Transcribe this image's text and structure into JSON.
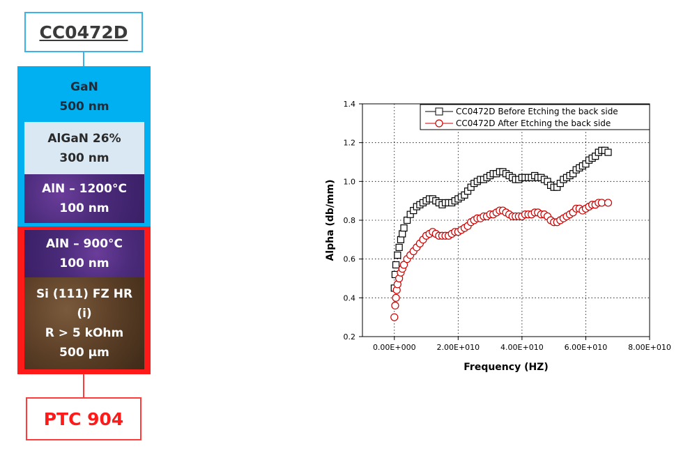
{
  "diagram": {
    "top_label": "CC0472D",
    "layers": [
      {
        "lines": [
          "GaN",
          "500 nm"
        ]
      },
      {
        "lines": [
          "AlGaN 26%",
          "300 nm"
        ]
      },
      {
        "lines": [
          "AlN – 1200°C",
          "100 nm"
        ]
      },
      {
        "lines": [
          "AlN – 900°C",
          "100 nm"
        ]
      },
      {
        "lines": [
          "Si (111) FZ HR",
          "(i)",
          "R  > 5 kOhm",
          "500 µm"
        ]
      }
    ],
    "bottom_label": "PTC 904",
    "colors": {
      "upper_frame": "#00b0f0",
      "lower_frame": "#ff1a1a"
    }
  },
  "chart_data": {
    "type": "scatter",
    "title": "",
    "xlabel": "Frequency (HZ)",
    "ylabel": "Alpha (db/mm)",
    "xlim": [
      -10000000000.0,
      80000000000.0
    ],
    "ylim": [
      0.2,
      1.4
    ],
    "x_ticks": [
      0,
      20000000000.0,
      40000000000.0,
      60000000000.0,
      80000000000.0
    ],
    "x_tick_labels": [
      "0.00E+000",
      "2.00E+010",
      "4.00E+010",
      "6.00E+010",
      "8.00E+010"
    ],
    "y_ticks": [
      0.2,
      0.4,
      0.6,
      0.8,
      1.0,
      1.2,
      1.4
    ],
    "y_tick_labels": [
      "0.2",
      "0.4",
      "0.6",
      "0.8",
      "1.0",
      "1.2",
      "1.4"
    ],
    "grid": "dotted",
    "legend_position": "top-right",
    "series": [
      {
        "name": "CC0472D Before Etching the back side",
        "color": "#000000",
        "marker": "square",
        "points": [
          [
            0.0,
            0.45
          ],
          [
            250000000.0,
            0.52
          ],
          [
            500000000.0,
            0.57
          ],
          [
            1000000000.0,
            0.62
          ],
          [
            1500000000.0,
            0.66
          ],
          [
            2000000000.0,
            0.7
          ],
          [
            2500000000.0,
            0.73
          ],
          [
            3000000000.0,
            0.76
          ],
          [
            4000000000.0,
            0.8
          ],
          [
            5000000000.0,
            0.83
          ],
          [
            6000000000.0,
            0.85
          ],
          [
            7000000000.0,
            0.87
          ],
          [
            8000000000.0,
            0.88
          ],
          [
            9000000000.0,
            0.89
          ],
          [
            10000000000.0,
            0.9
          ],
          [
            11000000000.0,
            0.91
          ],
          [
            12000000000.0,
            0.91
          ],
          [
            13000000000.0,
            0.9
          ],
          [
            14000000000.0,
            0.89
          ],
          [
            15000000000.0,
            0.88
          ],
          [
            16000000000.0,
            0.89
          ],
          [
            17000000000.0,
            0.89
          ],
          [
            18000000000.0,
            0.89
          ],
          [
            19000000000.0,
            0.9
          ],
          [
            20000000000.0,
            0.91
          ],
          [
            21000000000.0,
            0.92
          ],
          [
            22000000000.0,
            0.93
          ],
          [
            23000000000.0,
            0.95
          ],
          [
            24000000000.0,
            0.97
          ],
          [
            25000000000.0,
            0.99
          ],
          [
            26000000000.0,
            1.0
          ],
          [
            27000000000.0,
            1.01
          ],
          [
            28000000000.0,
            1.01
          ],
          [
            29000000000.0,
            1.02
          ],
          [
            30000000000.0,
            1.03
          ],
          [
            31000000000.0,
            1.04
          ],
          [
            32000000000.0,
            1.04
          ],
          [
            33000000000.0,
            1.05
          ],
          [
            34000000000.0,
            1.05
          ],
          [
            35000000000.0,
            1.04
          ],
          [
            36000000000.0,
            1.03
          ],
          [
            37000000000.0,
            1.02
          ],
          [
            38000000000.0,
            1.01
          ],
          [
            39000000000.0,
            1.01
          ],
          [
            40000000000.0,
            1.02
          ],
          [
            41000000000.0,
            1.02
          ],
          [
            42000000000.0,
            1.02
          ],
          [
            43000000000.0,
            1.02
          ],
          [
            44000000000.0,
            1.03
          ],
          [
            45000000000.0,
            1.02
          ],
          [
            46000000000.0,
            1.02
          ],
          [
            47000000000.0,
            1.01
          ],
          [
            48000000000.0,
            1.0
          ],
          [
            49000000000.0,
            0.98
          ],
          [
            50000000000.0,
            0.97
          ],
          [
            51000000000.0,
            0.97
          ],
          [
            52000000000.0,
            0.99
          ],
          [
            53000000000.0,
            1.01
          ],
          [
            54000000000.0,
            1.02
          ],
          [
            55000000000.0,
            1.03
          ],
          [
            56000000000.0,
            1.04
          ],
          [
            57000000000.0,
            1.06
          ],
          [
            58000000000.0,
            1.07
          ],
          [
            59000000000.0,
            1.08
          ],
          [
            60000000000.0,
            1.09
          ],
          [
            61000000000.0,
            1.11
          ],
          [
            62000000000.0,
            1.12
          ],
          [
            63000000000.0,
            1.13
          ],
          [
            64000000000.0,
            1.15
          ],
          [
            65000000000.0,
            1.16
          ],
          [
            66000000000.0,
            1.16
          ],
          [
            67000000000.0,
            1.15
          ]
        ]
      },
      {
        "name": "CC0472D After Etching the back side",
        "color": "#cc0000",
        "marker": "circle",
        "points": [
          [
            0.0,
            0.3
          ],
          [
            250000000.0,
            0.36
          ],
          [
            500000000.0,
            0.4
          ],
          [
            750000000.0,
            0.44
          ],
          [
            1000000000.0,
            0.47
          ],
          [
            1500000000.0,
            0.5
          ],
          [
            2000000000.0,
            0.53
          ],
          [
            2500000000.0,
            0.55
          ],
          [
            3000000000.0,
            0.57
          ],
          [
            4000000000.0,
            0.6
          ],
          [
            5000000000.0,
            0.62
          ],
          [
            6000000000.0,
            0.64
          ],
          [
            7000000000.0,
            0.66
          ],
          [
            8000000000.0,
            0.68
          ],
          [
            9000000000.0,
            0.7
          ],
          [
            10000000000.0,
            0.72
          ],
          [
            11000000000.0,
            0.73
          ],
          [
            12000000000.0,
            0.74
          ],
          [
            13000000000.0,
            0.73
          ],
          [
            14000000000.0,
            0.72
          ],
          [
            15000000000.0,
            0.72
          ],
          [
            16000000000.0,
            0.72
          ],
          [
            17000000000.0,
            0.72
          ],
          [
            18000000000.0,
            0.73
          ],
          [
            19000000000.0,
            0.74
          ],
          [
            20000000000.0,
            0.74
          ],
          [
            21000000000.0,
            0.75
          ],
          [
            22000000000.0,
            0.76
          ],
          [
            23000000000.0,
            0.77
          ],
          [
            24000000000.0,
            0.79
          ],
          [
            25000000000.0,
            0.8
          ],
          [
            26000000000.0,
            0.81
          ],
          [
            27000000000.0,
            0.81
          ],
          [
            28000000000.0,
            0.82
          ],
          [
            29000000000.0,
            0.82
          ],
          [
            30000000000.0,
            0.83
          ],
          [
            31000000000.0,
            0.83
          ],
          [
            32000000000.0,
            0.84
          ],
          [
            33000000000.0,
            0.85
          ],
          [
            34000000000.0,
            0.85
          ],
          [
            35000000000.0,
            0.84
          ],
          [
            36000000000.0,
            0.83
          ],
          [
            37000000000.0,
            0.82
          ],
          [
            38000000000.0,
            0.82
          ],
          [
            39000000000.0,
            0.82
          ],
          [
            40000000000.0,
            0.82
          ],
          [
            41000000000.0,
            0.83
          ],
          [
            42000000000.0,
            0.83
          ],
          [
            43000000000.0,
            0.83
          ],
          [
            44000000000.0,
            0.84
          ],
          [
            45000000000.0,
            0.84
          ],
          [
            46000000000.0,
            0.83
          ],
          [
            47000000000.0,
            0.83
          ],
          [
            48000000000.0,
            0.82
          ],
          [
            49000000000.0,
            0.8
          ],
          [
            50000000000.0,
            0.79
          ],
          [
            51000000000.0,
            0.79
          ],
          [
            52000000000.0,
            0.8
          ],
          [
            53000000000.0,
            0.81
          ],
          [
            54000000000.0,
            0.82
          ],
          [
            55000000000.0,
            0.83
          ],
          [
            56000000000.0,
            0.84
          ],
          [
            57000000000.0,
            0.86
          ],
          [
            58000000000.0,
            0.86
          ],
          [
            59000000000.0,
            0.85
          ],
          [
            60000000000.0,
            0.86
          ],
          [
            61000000000.0,
            0.87
          ],
          [
            62000000000.0,
            0.88
          ],
          [
            63000000000.0,
            0.88
          ],
          [
            64000000000.0,
            0.89
          ],
          [
            65000000000.0,
            0.89
          ],
          [
            67000000000.0,
            0.89
          ]
        ]
      }
    ]
  }
}
